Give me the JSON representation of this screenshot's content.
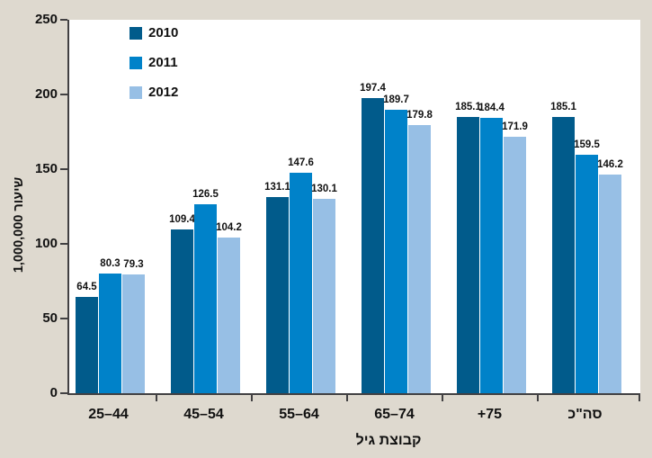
{
  "page": {
    "background_color": "#ded9cf",
    "plot_background_color": "#ffffff",
    "axis_color": "#414042",
    "text_color": "#111111"
  },
  "chart_data": {
    "type": "bar",
    "title": "",
    "xlabel": "קבוצת גיל",
    "ylabel": "שיעור 1,000,000",
    "categories": [
      "25–44",
      "45–54",
      "55–64",
      "65–74",
      "+75",
      "סה\"כ"
    ],
    "series": [
      {
        "name": "2010",
        "color": "#015b8b",
        "values": [
          64.5,
          109.4,
          131.1,
          197.4,
          185.1,
          185.1
        ]
      },
      {
        "name": "2011",
        "color": "#0082c9",
        "values": [
          80.3,
          126.5,
          147.6,
          189.7,
          184.4,
          159.5
        ]
      },
      {
        "name": "2012",
        "color": "#97bfe5",
        "values": [
          79.3,
          104.2,
          130.1,
          179.8,
          171.9,
          146.2
        ]
      }
    ],
    "ylim": [
      0,
      250
    ],
    "yticks": [
      0,
      50,
      100,
      150,
      200,
      250
    ],
    "grid": false,
    "legend_position": "top-left",
    "value_labels_shown": true
  }
}
